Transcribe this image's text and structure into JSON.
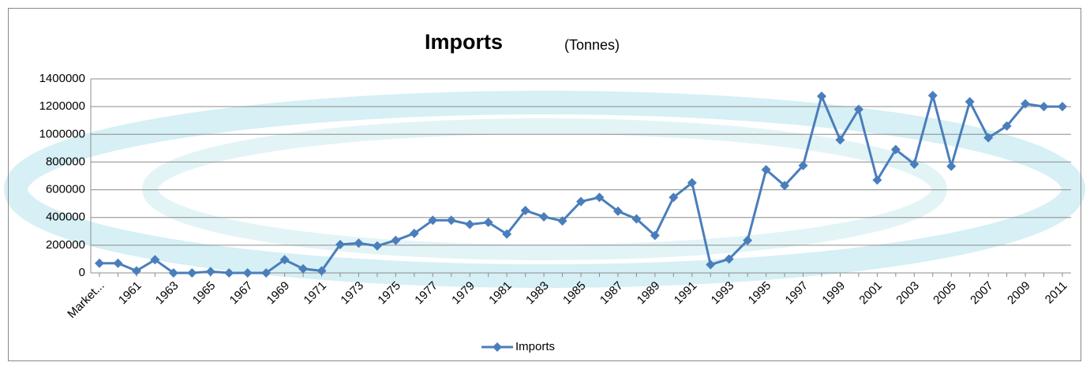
{
  "chart_data": {
    "type": "line",
    "title": "Imports",
    "subtitle": "(Tonnes)",
    "categories": [
      "Market...",
      null,
      "1961",
      null,
      "1963",
      null,
      "1965",
      null,
      "1967",
      null,
      "1969",
      null,
      "1971",
      null,
      "1973",
      null,
      "1975",
      null,
      "1977",
      null,
      "1979",
      null,
      "1981",
      null,
      "1983",
      null,
      "1985",
      null,
      "1987",
      null,
      "1989",
      null,
      "1991",
      null,
      "1993",
      null,
      "1995",
      null,
      "1997",
      null,
      "1999",
      null,
      "2001",
      null,
      "2003",
      null,
      "2005",
      null,
      "2007",
      null,
      "2009",
      null,
      "2011"
    ],
    "series": [
      {
        "name": "Imports",
        "color": "#4a7ebb",
        "values": [
          70000,
          70000,
          15000,
          95000,
          0,
          0,
          10000,
          0,
          0,
          0,
          95000,
          30000,
          15000,
          205000,
          215000,
          195000,
          235000,
          285000,
          380000,
          380000,
          350000,
          365000,
          280000,
          450000,
          405000,
          375000,
          515000,
          545000,
          445000,
          390000,
          270000,
          545000,
          650000,
          60000,
          100000,
          235000,
          745000,
          630000,
          775000,
          1275000,
          960000,
          1180000,
          670000,
          890000,
          785000,
          1280000,
          770000,
          1235000,
          975000,
          1060000,
          1220000,
          1200000,
          1200000
        ]
      }
    ],
    "ylim": [
      0,
      1400000
    ],
    "yticks": [
      0,
      200000,
      400000,
      600000,
      800000,
      1000000,
      1200000,
      1400000
    ],
    "grid": true,
    "legend": "bottom"
  }
}
